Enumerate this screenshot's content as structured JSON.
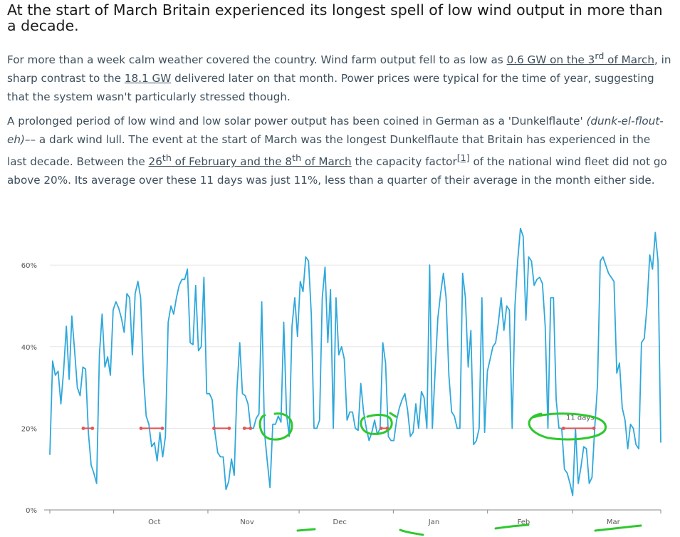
{
  "title": "At the start of March Britain experienced its longest spell of low wind output in more than a decade.",
  "p1": {
    "t1": "For more than a week calm weather covered the country.  Wind farm output fell to as low as ",
    "link1": "0.6 GW on the 3",
    "link1_sup": "rd",
    "link1_end": " of March",
    "t2": ", in sharp contrast to the ",
    "link2": "18.1 GW",
    "t3": " delivered later on that month.  Power prices were typical for the time of year, suggesting that the system wasn't particularly stressed though."
  },
  "p2": {
    "t1": "A prolonged period of low wind and low solar power output has been coined in German as a 'Dunkelflaute' ",
    "em": "(dunk-el-flout-eh)",
    "t2": "–– a dark wind lull.  The event at the start of March was the longest Dunkelflaute that Britain has experienced in the last decade.  Between the ",
    "link1": "26",
    "link1_sup": "th",
    "link1_end": " of February and the 8",
    "link1_sup2": "th",
    "link1_end2": " of March",
    "t3": " the capacity factor",
    "footnote": "[1]",
    "t4": " of the national wind fleet did not go above 20%.  Its average over these 11 days was just 11%, less than a quarter of their average in the month either side."
  },
  "chart_data": {
    "type": "line",
    "title": "",
    "xlabel": "",
    "ylabel": "",
    "ylim": [
      0,
      70
    ],
    "yticks": [
      "0%",
      "20%",
      "40%",
      "60%"
    ],
    "ytick_values": [
      0,
      20,
      40,
      60
    ],
    "xticks": [
      "Oct",
      "Nov",
      "Dec",
      "Jan",
      "Feb",
      "Mar"
    ],
    "x_start": "2018-09-10",
    "x_end": "2019-03-30",
    "annotation": "11 days",
    "grid": "horizontal",
    "colors": {
      "line": "#2fa8dc",
      "threshold": "#e05555",
      "handdrawn": "#2ec82e",
      "grid": "#e6e6e6",
      "axis": "#888888"
    },
    "series": [
      {
        "values": [
          13.5,
          36.5,
          33,
          34,
          26,
          34,
          45,
          32,
          47.5,
          39,
          30,
          28,
          35,
          34.5,
          19,
          11,
          9,
          6.5,
          38,
          48,
          35,
          37.5,
          33,
          49,
          51,
          49.5,
          47,
          43.5,
          53,
          52,
          38,
          53,
          56,
          52,
          33,
          23,
          21,
          15.5,
          16.5,
          12,
          19,
          13,
          18,
          46,
          50,
          48,
          52,
          55,
          56.5,
          56.5,
          59,
          41,
          40.5,
          55,
          39,
          40,
          57,
          28.5,
          28.5,
          27,
          19,
          14,
          13,
          13,
          5,
          7,
          12.5,
          8.5,
          29.5,
          41,
          28.5,
          28,
          26,
          20,
          20,
          22.5,
          23.5,
          51,
          19,
          12,
          5.5,
          21,
          21,
          23,
          21.5,
          46,
          23.5,
          18,
          45,
          52,
          42.5,
          56,
          53.5,
          62,
          61,
          48,
          20,
          20,
          22,
          52,
          59.5,
          41,
          54,
          20,
          52,
          38,
          40,
          37,
          22,
          24,
          24,
          20,
          19.5,
          31,
          24,
          20,
          17,
          19,
          22,
          18.5,
          20,
          41,
          36,
          18,
          17,
          17,
          22,
          25,
          27,
          28.5,
          24.5,
          18,
          19,
          26,
          20,
          29,
          27.5,
          20,
          60,
          20,
          34,
          47,
          53,
          58,
          52,
          33,
          24,
          23,
          20,
          20,
          58,
          52,
          35,
          44,
          16,
          17,
          20,
          52,
          19,
          34,
          37,
          40,
          41,
          46,
          52,
          44,
          50,
          49,
          20,
          50,
          61,
          69,
          67,
          46.5,
          62,
          61,
          55,
          56.5,
          57,
          55.5,
          45,
          20,
          52,
          52,
          27,
          20,
          20,
          10,
          9,
          6.5,
          3.5,
          20,
          6.5,
          10.5,
          15.5,
          15,
          6.5,
          8,
          20,
          30.5,
          61,
          62,
          60,
          58,
          57,
          56,
          33.5,
          36,
          25,
          22,
          15,
          21,
          20,
          16,
          15,
          41,
          42,
          50,
          62.5,
          59,
          68,
          61,
          16.5
        ]
      }
    ],
    "threshold_segments": [
      {
        "start": "2018-09-21",
        "end": "2018-09-24"
      },
      {
        "start": "2018-10-10",
        "end": "2018-10-17"
      },
      {
        "start": "2018-11-03",
        "end": "2018-11-08"
      },
      {
        "start": "2018-11-13",
        "end": "2018-11-15"
      },
      {
        "start": "2018-12-28",
        "end": "2018-12-30"
      },
      {
        "start": "2019-02-26",
        "end": "2019-03-08"
      }
    ]
  }
}
